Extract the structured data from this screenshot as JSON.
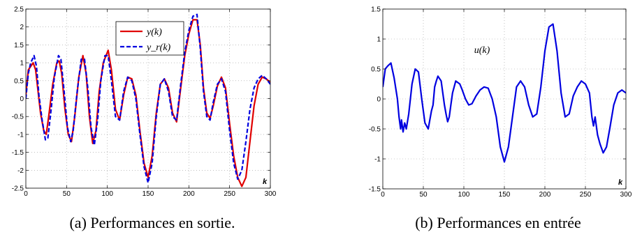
{
  "captions": {
    "left": "(a) Performances en sortie.",
    "right": "(b) Performances en entrée"
  },
  "chart_data": [
    {
      "type": "line",
      "title": "",
      "xlabel": "k",
      "ylabel": "",
      "xlim": [
        0,
        300
      ],
      "ylim": [
        -2.5,
        2.5
      ],
      "xticks": [
        0,
        50,
        100,
        150,
        200,
        250,
        300
      ],
      "yticks": [
        -2.5,
        -2,
        -1.5,
        -1,
        -0.5,
        0,
        0.5,
        1,
        1.5,
        2,
        2.5
      ],
      "grid": true,
      "legend_position": "top-center",
      "series": [
        {
          "name": "y(k)",
          "color": "#e00000",
          "style": "solid",
          "x": [
            0,
            3,
            6,
            9,
            12,
            15,
            18,
            22,
            25,
            28,
            33,
            38,
            41,
            44,
            48,
            52,
            56,
            60,
            65,
            70,
            74,
            78,
            82,
            86,
            90,
            95,
            101,
            105,
            110,
            115,
            120,
            125,
            130,
            135,
            140,
            145,
            150,
            155,
            160,
            165,
            170,
            175,
            180,
            185,
            190,
            195,
            200,
            205,
            210,
            214,
            218,
            222,
            226,
            230,
            235,
            240,
            245,
            250,
            255,
            260,
            265,
            270,
            275,
            280,
            285,
            290,
            295,
            300
          ],
          "values": [
            0.1,
            0.8,
            0.9,
            1.0,
            0.8,
            0.2,
            -0.4,
            -0.9,
            -1.0,
            -0.5,
            0.4,
            1.0,
            1.05,
            0.7,
            -0.3,
            -1.0,
            -1.2,
            -0.5,
            0.6,
            1.2,
            0.7,
            -0.5,
            -1.25,
            -0.9,
            0.2,
            1.0,
            1.35,
            0.8,
            -0.3,
            -0.6,
            0.1,
            0.6,
            0.55,
            0.1,
            -0.9,
            -1.8,
            -2.2,
            -1.6,
            -0.4,
            0.4,
            0.55,
            0.3,
            -0.4,
            -0.65,
            0.3,
            1.2,
            1.8,
            2.2,
            2.2,
            1.5,
            0.3,
            -0.4,
            -0.55,
            -0.2,
            0.35,
            0.6,
            0.3,
            -0.7,
            -1.6,
            -2.2,
            -2.45,
            -2.2,
            -1.2,
            -0.2,
            0.4,
            0.6,
            0.55,
            0.45
          ]
        },
        {
          "name": "y_r(k)",
          "color": "#0000e0",
          "style": "dashed",
          "x": [
            0,
            3,
            6,
            10,
            13,
            16,
            20,
            24,
            27,
            31,
            35,
            40,
            43,
            47,
            51,
            55,
            58,
            63,
            68,
            72,
            76,
            80,
            84,
            88,
            92,
            97,
            101,
            105,
            110,
            115,
            120,
            125,
            130,
            135,
            140,
            145,
            150,
            155,
            160,
            165,
            170,
            175,
            180,
            185,
            190,
            195,
            200,
            205,
            210,
            214,
            218,
            222,
            226,
            230,
            235,
            240,
            245,
            250,
            255,
            260,
            265,
            270,
            275,
            280,
            285,
            290,
            295,
            300
          ],
          "values": [
            0.0,
            0.7,
            1.0,
            1.2,
            0.9,
            0.1,
            -0.6,
            -1.15,
            -1.1,
            -0.3,
            0.6,
            1.2,
            1.1,
            0.2,
            -0.8,
            -1.2,
            -0.9,
            0.2,
            1.1,
            1.1,
            0.3,
            -0.8,
            -1.3,
            -0.6,
            0.5,
            1.2,
            1.2,
            0.5,
            -0.5,
            -0.6,
            0.2,
            0.6,
            0.5,
            0.0,
            -1.0,
            -1.9,
            -2.35,
            -1.8,
            -0.5,
            0.4,
            0.55,
            0.2,
            -0.5,
            -0.6,
            0.4,
            1.3,
            1.9,
            2.3,
            2.35,
            1.4,
            0.2,
            -0.5,
            -0.6,
            -0.1,
            0.4,
            0.55,
            0.2,
            -0.9,
            -1.8,
            -2.25,
            -2.0,
            -1.2,
            -0.3,
            0.3,
            0.55,
            0.65,
            0.55,
            0.4
          ]
        }
      ]
    },
    {
      "type": "line",
      "title": "",
      "xlabel": "k",
      "ylabel": "",
      "xlim": [
        0,
        300
      ],
      "ylim": [
        -1.5,
        1.5
      ],
      "xticks": [
        0,
        50,
        100,
        150,
        200,
        250,
        300
      ],
      "yticks": [
        -1.5,
        -1,
        -0.5,
        0,
        0.5,
        1,
        1.5
      ],
      "grid": true,
      "annotation": "u(k)",
      "series": [
        {
          "name": "u(k)",
          "color": "#0000e0",
          "style": "solid",
          "x": [
            0,
            3,
            6,
            10,
            14,
            18,
            20,
            22,
            23,
            25,
            27,
            29,
            32,
            36,
            40,
            44,
            48,
            52,
            56,
            60,
            62,
            64,
            66,
            68,
            72,
            76,
            78,
            80,
            82,
            84,
            86,
            90,
            95,
            98,
            102,
            106,
            110,
            115,
            120,
            125,
            130,
            135,
            140,
            145,
            150,
            155,
            160,
            165,
            170,
            175,
            180,
            185,
            190,
            195,
            200,
            205,
            210,
            215,
            220,
            225,
            230,
            235,
            240,
            245,
            250,
            255,
            258,
            260,
            262,
            265,
            268,
            272,
            276,
            280,
            285,
            290,
            295,
            300
          ],
          "values": [
            0.2,
            0.5,
            0.55,
            0.6,
            0.35,
            0.0,
            -0.3,
            -0.5,
            -0.35,
            -0.55,
            -0.4,
            -0.5,
            -0.25,
            0.25,
            0.5,
            0.45,
            0.0,
            -0.4,
            -0.5,
            -0.2,
            -0.1,
            0.2,
            0.3,
            0.38,
            0.3,
            -0.1,
            -0.25,
            -0.38,
            -0.3,
            -0.1,
            0.1,
            0.3,
            0.25,
            0.15,
            0.0,
            -0.1,
            -0.08,
            0.05,
            0.15,
            0.2,
            0.18,
            0.0,
            -0.3,
            -0.8,
            -1.05,
            -0.8,
            -0.3,
            0.2,
            0.3,
            0.2,
            -0.1,
            -0.3,
            -0.25,
            0.2,
            0.8,
            1.2,
            1.25,
            0.8,
            0.1,
            -0.3,
            -0.25,
            0.05,
            0.2,
            0.3,
            0.25,
            0.1,
            -0.3,
            -0.45,
            -0.3,
            -0.6,
            -0.75,
            -0.9,
            -0.8,
            -0.5,
            -0.1,
            0.1,
            0.15,
            0.1
          ]
        }
      ]
    }
  ]
}
